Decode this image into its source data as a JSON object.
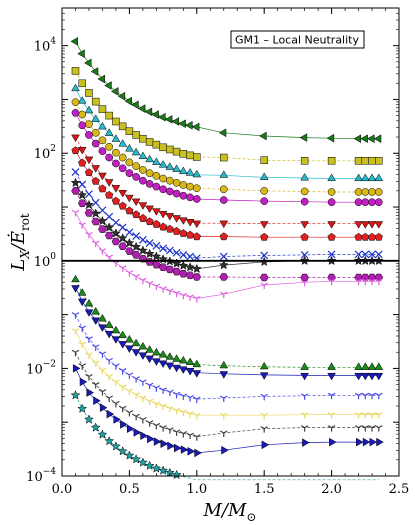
{
  "chart_data": {
    "type": "scatter",
    "title": "",
    "annotation": "GM1 – Local Neutrality",
    "xlabel": "M/M",
    "xlabel_sub": "⊙",
    "ylabel": "L",
    "ylabel_sub_x": "X",
    "ylabel_over": "Ė",
    "ylabel_sub_rot": "rot",
    "xlim": [
      0.0,
      2.5
    ],
    "ylim_log10": [
      -4,
      4.7
    ],
    "y_scale": "log",
    "grid": false,
    "x_ticks": [
      0.0,
      0.5,
      1.0,
      1.5,
      2.0,
      2.5
    ],
    "x_tick_labels": [
      "0.0",
      "0.5",
      "1.0",
      "1.5",
      "2.0",
      "2.5"
    ],
    "y_ticks_log10": [
      -4,
      -2,
      0,
      2,
      4
    ],
    "y_tick_labels": [
      {
        "base": "10",
        "exp": "−4"
      },
      {
        "base": "10",
        "exp": "−2"
      },
      {
        "base": "10",
        "exp": "0"
      },
      {
        "base": "10",
        "exp": "2"
      },
      {
        "base": "10",
        "exp": "4"
      }
    ],
    "reference_line_log10": 0,
    "x": [
      0.1,
      0.15,
      0.2,
      0.25,
      0.3,
      0.35,
      0.4,
      0.45,
      0.5,
      0.55,
      0.6,
      0.65,
      0.7,
      0.75,
      0.8,
      0.85,
      0.9,
      0.95,
      1.0,
      1.2,
      1.5,
      1.8,
      2.0,
      2.2,
      2.25,
      2.3,
      2.35
    ],
    "series": [
      {
        "marker": "triangle-left",
        "color": "#1a7a1a",
        "values_log10": [
          4.08,
          3.85,
          3.68,
          3.52,
          3.38,
          3.26,
          3.15,
          3.06,
          2.97,
          2.9,
          2.83,
          2.77,
          2.72,
          2.67,
          2.63,
          2.59,
          2.55,
          2.52,
          2.49,
          2.38,
          2.32,
          2.29,
          2.28,
          2.27,
          2.27,
          2.27,
          2.27
        ]
      },
      {
        "marker": "square",
        "color": "#c8c020",
        "values_log10": [
          3.53,
          3.3,
          3.12,
          2.96,
          2.82,
          2.7,
          2.59,
          2.5,
          2.41,
          2.34,
          2.27,
          2.21,
          2.16,
          2.11,
          2.07,
          2.03,
          1.99,
          1.96,
          1.93,
          1.92,
          1.87,
          1.86,
          1.86,
          1.86,
          1.86,
          1.86,
          1.86
        ]
      },
      {
        "marker": "triangle-up",
        "color": "#28b8c8",
        "values_log10": [
          3.2,
          2.97,
          2.79,
          2.63,
          2.49,
          2.37,
          2.26,
          2.17,
          2.08,
          2.01,
          1.94,
          1.88,
          1.83,
          1.78,
          1.74,
          1.7,
          1.66,
          1.63,
          1.6,
          1.59,
          1.55,
          1.54,
          1.53,
          1.53,
          1.53,
          1.53,
          1.53
        ]
      },
      {
        "marker": "circle",
        "color": "#d8b818",
        "values_log10": [
          2.95,
          2.72,
          2.54,
          2.38,
          2.24,
          2.12,
          2.01,
          1.92,
          1.83,
          1.76,
          1.69,
          1.63,
          1.58,
          1.53,
          1.49,
          1.45,
          1.41,
          1.38,
          1.35,
          1.33,
          1.3,
          1.29,
          1.28,
          1.28,
          1.28,
          1.28,
          1.28
        ]
      },
      {
        "marker": "circle",
        "color": "#c020c0",
        "values_log10": [
          2.75,
          2.52,
          2.34,
          2.18,
          2.04,
          1.92,
          1.81,
          1.72,
          1.63,
          1.56,
          1.49,
          1.43,
          1.38,
          1.33,
          1.29,
          1.25,
          1.21,
          1.18,
          1.15,
          1.13,
          1.11,
          1.1,
          1.09,
          1.09,
          1.09,
          1.09,
          1.09
        ]
      },
      {
        "marker": "triangle-down",
        "color": "#d81818",
        "values_log10": [
          2.3,
          2.07,
          1.89,
          1.73,
          1.59,
          1.47,
          1.36,
          1.27,
          1.18,
          1.11,
          1.04,
          0.98,
          0.93,
          0.88,
          0.84,
          0.8,
          0.76,
          0.73,
          0.7,
          0.7,
          0.69,
          0.69,
          0.69,
          0.69,
          0.69,
          0.69,
          0.69
        ]
      },
      {
        "marker": "pentagon",
        "color": "#e02020",
        "values_log10": [
          2.05,
          1.82,
          1.64,
          1.48,
          1.34,
          1.22,
          1.11,
          1.02,
          0.93,
          0.86,
          0.79,
          0.73,
          0.68,
          0.63,
          0.59,
          0.55,
          0.51,
          0.48,
          0.45,
          0.45,
          0.44,
          0.44,
          0.44,
          0.44,
          0.44,
          0.44,
          0.44
        ]
      },
      {
        "marker": "x",
        "color": "#1a30c8",
        "values_log10": [
          1.65,
          1.42,
          1.24,
          1.08,
          0.94,
          0.82,
          0.71,
          0.62,
          0.53,
          0.46,
          0.39,
          0.33,
          0.28,
          0.23,
          0.19,
          0.15,
          0.11,
          0.08,
          0.05,
          0.08,
          0.1,
          0.11,
          0.12,
          0.12,
          0.12,
          0.12,
          0.12
        ]
      },
      {
        "marker": "star",
        "color": "#303030",
        "values_log10": [
          1.45,
          1.22,
          1.04,
          0.88,
          0.74,
          0.62,
          0.51,
          0.42,
          0.33,
          0.26,
          0.19,
          0.13,
          0.08,
          0.03,
          -0.01,
          -0.05,
          -0.09,
          -0.12,
          -0.15,
          -0.08,
          -0.02,
          0.0,
          0.0,
          0.0,
          0.0,
          0.0,
          0.0
        ]
      },
      {
        "marker": "hexagon",
        "color": "#b020b0",
        "values_log10": [
          1.3,
          1.07,
          0.89,
          0.73,
          0.59,
          0.47,
          0.36,
          0.27,
          0.18,
          0.11,
          0.04,
          -0.02,
          -0.07,
          -0.12,
          -0.16,
          -0.2,
          -0.24,
          -0.27,
          -0.3,
          -0.3,
          -0.31,
          -0.31,
          -0.31,
          -0.31,
          -0.31,
          -0.31,
          -0.31
        ]
      },
      {
        "marker": "tri-down",
        "color": "#e060e0",
        "values_log10": [
          0.9,
          0.67,
          0.49,
          0.33,
          0.19,
          0.07,
          -0.04,
          -0.13,
          -0.22,
          -0.29,
          -0.36,
          -0.42,
          -0.47,
          -0.52,
          -0.56,
          -0.6,
          -0.64,
          -0.67,
          -0.7,
          -0.62,
          -0.45,
          -0.4,
          -0.38,
          -0.38,
          -0.38,
          -0.38,
          -0.38
        ]
      },
      {
        "marker": "triangle-up",
        "color": "#1a8a1a",
        "values_log10": [
          -0.35,
          -0.6,
          -0.8,
          -0.95,
          -1.08,
          -1.2,
          -1.3,
          -1.39,
          -1.47,
          -1.54,
          -1.6,
          -1.66,
          -1.71,
          -1.75,
          -1.79,
          -1.83,
          -1.86,
          -1.89,
          -1.93,
          -1.95,
          -1.97,
          -1.98,
          -1.98,
          -1.98,
          -1.98,
          -1.98,
          -1.98
        ]
      },
      {
        "marker": "triangle-down",
        "color": "#1a1ab8",
        "values_log10": [
          -0.5,
          -0.75,
          -0.95,
          -1.1,
          -1.23,
          -1.35,
          -1.45,
          -1.54,
          -1.62,
          -1.69,
          -1.75,
          -1.81,
          -1.86,
          -1.9,
          -1.94,
          -1.98,
          -2.01,
          -2.04,
          -2.08,
          -2.1,
          -2.12,
          -2.13,
          -2.13,
          -2.13,
          -2.13,
          -2.13,
          -2.13
        ]
      },
      {
        "marker": "tri-down",
        "color": "#4a4ae8",
        "values_log10": [
          -1.0,
          -1.25,
          -1.45,
          -1.6,
          -1.73,
          -1.85,
          -1.95,
          -2.04,
          -2.12,
          -2.19,
          -2.25,
          -2.31,
          -2.36,
          -2.4,
          -2.44,
          -2.48,
          -2.51,
          -2.54,
          -2.57,
          -2.55,
          -2.52,
          -2.51,
          -2.5,
          -2.5,
          -2.5,
          -2.5,
          -2.5
        ]
      },
      {
        "marker": "tri-down",
        "color": "#e8d860",
        "values_log10": [
          -1.3,
          -1.55,
          -1.75,
          -1.9,
          -2.03,
          -2.15,
          -2.25,
          -2.34,
          -2.42,
          -2.49,
          -2.55,
          -2.61,
          -2.66,
          -2.7,
          -2.74,
          -2.78,
          -2.81,
          -2.84,
          -2.87,
          -2.87,
          -2.87,
          -2.86,
          -2.86,
          -2.86,
          -2.86,
          -2.86,
          -2.86
        ]
      },
      {
        "marker": "tri-down",
        "color": "#404040",
        "values_log10": [
          -1.7,
          -1.95,
          -2.15,
          -2.3,
          -2.43,
          -2.55,
          -2.65,
          -2.74,
          -2.82,
          -2.89,
          -2.95,
          -3.01,
          -3.06,
          -3.1,
          -3.14,
          -3.18,
          -3.21,
          -3.24,
          -3.27,
          -3.2,
          -3.12,
          -3.1,
          -3.1,
          -3.1,
          -3.1,
          -3.1,
          -3.1
        ]
      },
      {
        "marker": "triangle-right",
        "color": "#1a1ab8",
        "values_log10": [
          -2.0,
          -2.25,
          -2.45,
          -2.6,
          -2.73,
          -2.85,
          -2.95,
          -3.04,
          -3.12,
          -3.19,
          -3.25,
          -3.31,
          -3.36,
          -3.4,
          -3.44,
          -3.48,
          -3.51,
          -3.54,
          -3.57,
          -3.52,
          -3.42,
          -3.38,
          -3.37,
          -3.37,
          -3.37,
          -3.37,
          -3.37
        ]
      },
      {
        "marker": "star",
        "color": "#20a0a0",
        "values_log10": [
          -2.5,
          -2.75,
          -2.95,
          -3.1,
          -3.23,
          -3.35,
          -3.45,
          -3.54,
          -3.62,
          -3.69,
          -3.75,
          -3.81,
          -3.86,
          -3.9,
          -3.94,
          -3.98,
          -4.01,
          -4.04,
          -4.07,
          -4.07,
          -4.07,
          -4.07,
          -4.07,
          -4.07,
          -4.07,
          -4.07,
          -4.07
        ]
      }
    ]
  }
}
